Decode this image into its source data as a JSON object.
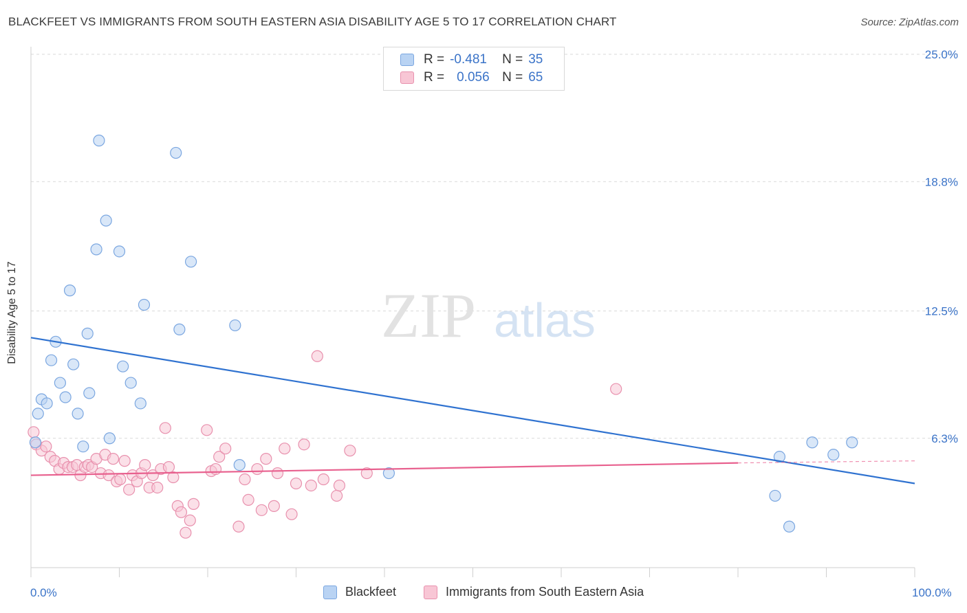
{
  "title": "BLACKFEET VS IMMIGRANTS FROM SOUTH EASTERN ASIA DISABILITY AGE 5 TO 17 CORRELATION CHART",
  "source": "Source: ZipAtlas.com",
  "watermark": {
    "zip": "ZIP",
    "atlas": "atlas"
  },
  "legend": [
    {
      "r_label": "R =",
      "r_value": "-0.481",
      "n_label": "N =",
      "n_value": "35"
    },
    {
      "r_label": "R =",
      "r_value": "0.056",
      "n_label": "N =",
      "n_value": "65"
    }
  ],
  "colors": {
    "blue_fill": "#b9d3f3",
    "blue_stroke": "#7aa6e0",
    "blue_line": "#2f72d0",
    "pink_fill": "#f8c6d5",
    "pink_stroke": "#e890ad",
    "pink_line": "#e8608e",
    "accent_text": "#3a73c8",
    "grid": "#d9d9d9"
  },
  "chart_data": {
    "type": "scatter",
    "title": "BLACKFEET VS IMMIGRANTS FROM SOUTH EASTERN ASIA DISABILITY AGE 5 TO 17 CORRELATION CHART",
    "xlabel": "",
    "ylabel": "Disability Age 5 to 17",
    "xlim": [
      0,
      100
    ],
    "ylim": [
      0,
      25.0
    ],
    "x_tick_labels": [
      "0.0%",
      "100.0%"
    ],
    "y_ticks": [
      6.3,
      12.5,
      18.8,
      25.0
    ],
    "y_tick_labels": [
      "6.3%",
      "12.5%",
      "18.8%",
      "25.0%"
    ],
    "grid": true,
    "legend_position": "bottom",
    "series": [
      {
        "name": "Blackfeet",
        "color": "#b9d3f3",
        "points": [
          [
            0.5,
            6.1
          ],
          [
            0.8,
            7.5
          ],
          [
            1.2,
            8.2
          ],
          [
            1.8,
            8.0
          ],
          [
            2.3,
            10.1
          ],
          [
            2.8,
            11.0
          ],
          [
            3.3,
            9.0
          ],
          [
            3.9,
            8.3
          ],
          [
            4.4,
            13.5
          ],
          [
            4.8,
            9.9
          ],
          [
            5.3,
            7.5
          ],
          [
            5.9,
            5.9
          ],
          [
            6.4,
            11.4
          ],
          [
            6.6,
            8.5
          ],
          [
            7.4,
            15.5
          ],
          [
            7.7,
            20.8
          ],
          [
            8.5,
            16.9
          ],
          [
            8.9,
            6.3
          ],
          [
            10.0,
            15.4
          ],
          [
            10.4,
            9.8
          ],
          [
            11.3,
            9.0
          ],
          [
            12.4,
            8.0
          ],
          [
            12.8,
            12.8
          ],
          [
            16.4,
            20.2
          ],
          [
            16.8,
            11.6
          ],
          [
            18.1,
            14.9
          ],
          [
            23.1,
            11.8
          ],
          [
            23.6,
            5.0
          ],
          [
            40.5,
            4.6
          ],
          [
            84.2,
            3.5
          ],
          [
            84.7,
            5.4
          ],
          [
            85.8,
            2.0
          ],
          [
            88.4,
            6.1
          ],
          [
            90.8,
            5.5
          ],
          [
            92.9,
            6.1
          ]
        ]
      },
      {
        "name": "Immigrants from South Eastern Asia",
        "color": "#f8c6d5",
        "points": [
          [
            0.3,
            6.6
          ],
          [
            0.6,
            6.0
          ],
          [
            1.2,
            5.7
          ],
          [
            1.7,
            5.9
          ],
          [
            2.2,
            5.4
          ],
          [
            2.7,
            5.2
          ],
          [
            3.2,
            4.8
          ],
          [
            3.7,
            5.1
          ],
          [
            4.2,
            4.9
          ],
          [
            4.7,
            4.9
          ],
          [
            5.2,
            5.0
          ],
          [
            5.6,
            4.5
          ],
          [
            6.1,
            4.9
          ],
          [
            6.5,
            5.0
          ],
          [
            6.9,
            4.9
          ],
          [
            7.4,
            5.3
          ],
          [
            7.9,
            4.6
          ],
          [
            8.4,
            5.5
          ],
          [
            8.8,
            4.5
          ],
          [
            9.3,
            5.3
          ],
          [
            9.7,
            4.2
          ],
          [
            10.1,
            4.3
          ],
          [
            10.6,
            5.2
          ],
          [
            11.1,
            3.8
          ],
          [
            11.5,
            4.5
          ],
          [
            12.0,
            4.2
          ],
          [
            12.5,
            4.6
          ],
          [
            12.9,
            5.0
          ],
          [
            13.4,
            3.9
          ],
          [
            13.8,
            4.5
          ],
          [
            14.3,
            3.9
          ],
          [
            14.7,
            4.8
          ],
          [
            15.2,
            6.8
          ],
          [
            15.6,
            4.9
          ],
          [
            16.1,
            4.4
          ],
          [
            16.6,
            3.0
          ],
          [
            17.0,
            2.7
          ],
          [
            17.5,
            1.7
          ],
          [
            18.0,
            2.3
          ],
          [
            18.4,
            3.1
          ],
          [
            19.9,
            6.7
          ],
          [
            20.4,
            4.7
          ],
          [
            20.9,
            4.8
          ],
          [
            21.3,
            5.4
          ],
          [
            22.0,
            5.8
          ],
          [
            23.5,
            2.0
          ],
          [
            24.2,
            4.3
          ],
          [
            24.6,
            3.3
          ],
          [
            25.6,
            4.8
          ],
          [
            26.1,
            2.8
          ],
          [
            26.6,
            5.3
          ],
          [
            27.5,
            3.0
          ],
          [
            27.9,
            4.6
          ],
          [
            28.7,
            5.8
          ],
          [
            29.5,
            2.6
          ],
          [
            30.0,
            4.1
          ],
          [
            30.9,
            6.0
          ],
          [
            31.7,
            4.0
          ],
          [
            32.4,
            10.3
          ],
          [
            33.1,
            4.3
          ],
          [
            34.6,
            3.5
          ],
          [
            34.9,
            4.0
          ],
          [
            36.1,
            5.7
          ],
          [
            38.0,
            4.6
          ],
          [
            66.2,
            8.7
          ]
        ]
      }
    ],
    "trend_lines": [
      {
        "series": "Blackfeet",
        "x": [
          0,
          100
        ],
        "y": [
          11.2,
          4.1
        ],
        "style": "solid"
      },
      {
        "series": "Immigrants from South Eastern Asia",
        "x": [
          0,
          80
        ],
        "y": [
          4.5,
          5.1
        ],
        "style": "solid"
      },
      {
        "series": "Immigrants from South Eastern Asia",
        "x": [
          80,
          100
        ],
        "y": [
          5.1,
          5.2
        ],
        "style": "dashed"
      }
    ]
  }
}
